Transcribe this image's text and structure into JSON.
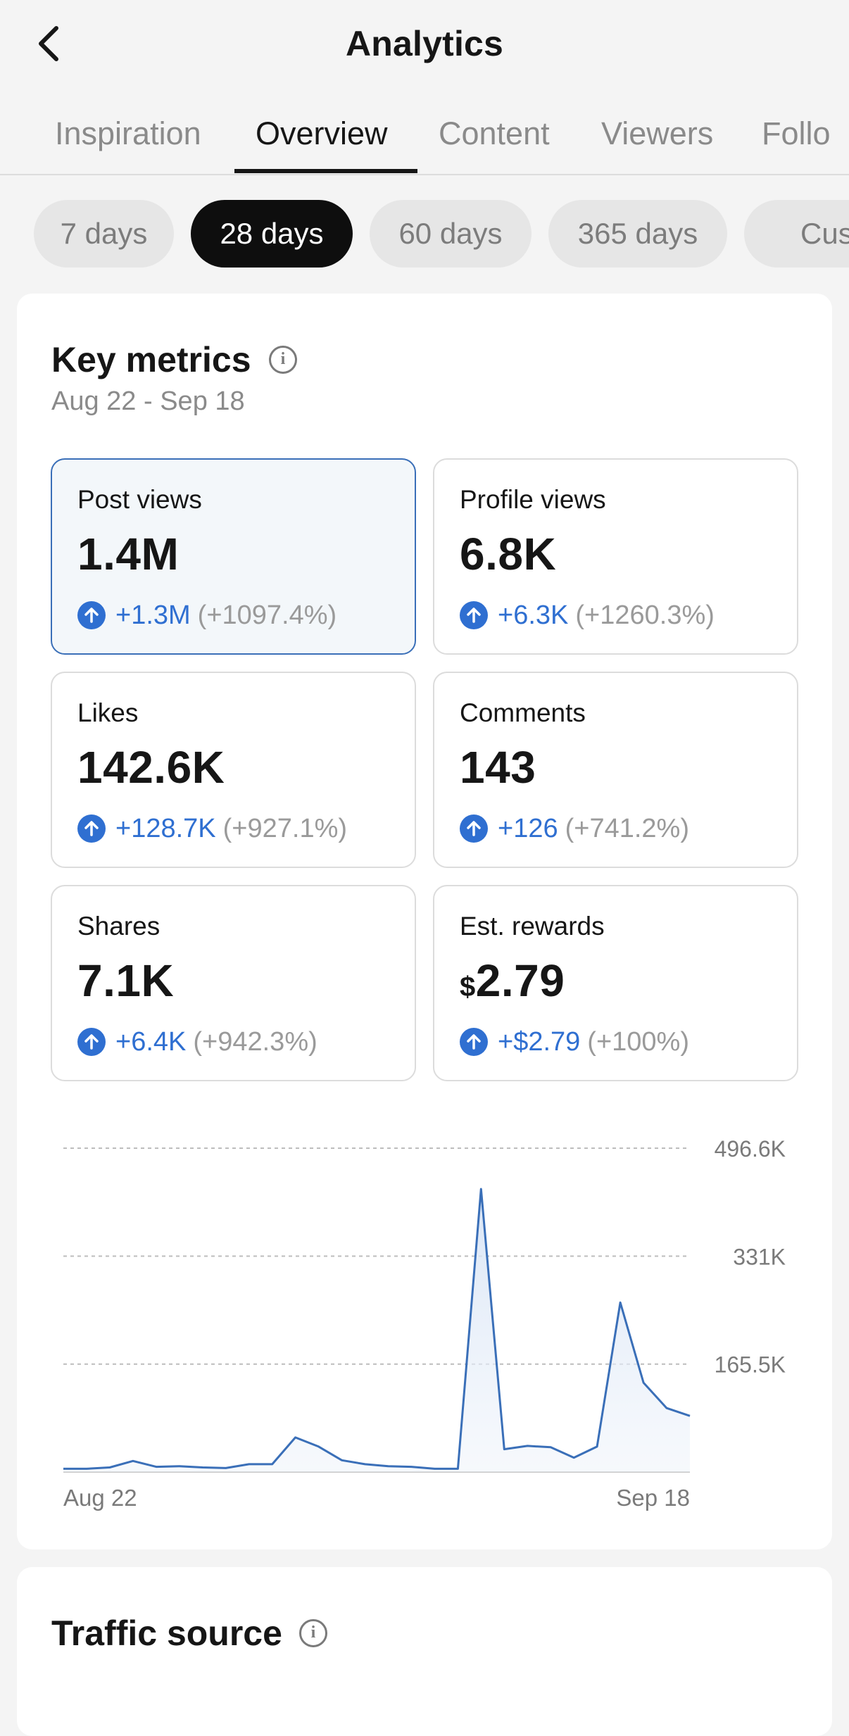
{
  "header": {
    "title": "Analytics",
    "back_icon": "chevron-left-icon"
  },
  "tabs": [
    {
      "label": "Inspiration",
      "active": false
    },
    {
      "label": "Overview",
      "active": true
    },
    {
      "label": "Content",
      "active": false
    },
    {
      "label": "Viewers",
      "active": false
    },
    {
      "label": "Follo",
      "active": false
    }
  ],
  "ranges": [
    {
      "label": "7 days",
      "active": false
    },
    {
      "label": "28 days",
      "active": true
    },
    {
      "label": "60 days",
      "active": false
    },
    {
      "label": "365 days",
      "active": false
    },
    {
      "label": "Cust",
      "active": false
    }
  ],
  "key_metrics": {
    "title": "Key metrics",
    "info_icon": "info-icon",
    "date_range": "Aug 22 - Sep 18",
    "metrics": [
      {
        "label": "Post views",
        "value": "1.4M",
        "change": "+1.3M",
        "change_pct": "(+1097.4%)",
        "selected": true
      },
      {
        "label": "Profile views",
        "value": "6.8K",
        "change": "+6.3K",
        "change_pct": "(+1260.3%)",
        "selected": false
      },
      {
        "label": "Likes",
        "value": "142.6K",
        "change": "+128.7K",
        "change_pct": "(+927.1%)",
        "selected": false
      },
      {
        "label": "Comments",
        "value": "143",
        "change": "+126",
        "change_pct": "(+741.2%)",
        "selected": false
      },
      {
        "label": "Shares",
        "value": "7.1K",
        "change": "+6.4K",
        "change_pct": "(+942.3%)",
        "selected": false
      },
      {
        "label": "Est. rewards",
        "currency": "$",
        "value": "2.79",
        "change": "+$2.79",
        "change_pct": "(+100%)",
        "selected": false
      }
    ]
  },
  "traffic_source": {
    "title": "Traffic source",
    "info_icon": "info-icon"
  },
  "colors": {
    "accent": "#2f6fd1",
    "chart_line": "#3a6fb8",
    "selected_border": "#3a6fb8"
  },
  "chart_data": {
    "type": "area",
    "series": [
      {
        "values": [
          5000,
          5000,
          7000,
          17000,
          8000,
          9000,
          7000,
          6000,
          12000,
          12000,
          53000,
          39000,
          18000,
          12000,
          9000,
          8000,
          5000,
          5000,
          434000,
          35000,
          40000,
          38000,
          22000,
          39000,
          260000,
          137000,
          98000,
          86000
        ]
      }
    ],
    "x_tick_labels": [
      "Aug 22",
      "Sep 18"
    ],
    "y_tick_labels": [
      "496.6K",
      "331K",
      "165.5K"
    ],
    "y_ticks": [
      496600,
      331000,
      165500
    ],
    "ylim": [
      0,
      496600
    ],
    "grid": true
  }
}
